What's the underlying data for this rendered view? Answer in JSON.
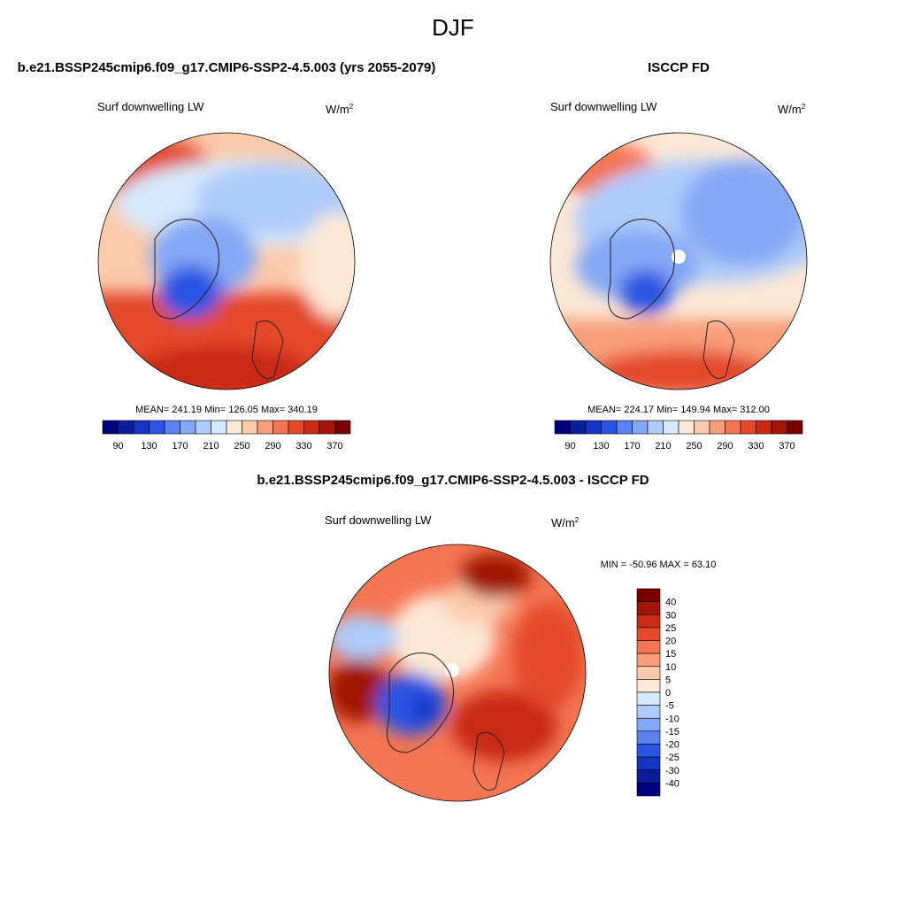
{
  "title": "DJF",
  "panels": [
    {
      "title": "b.e21.BSSP245cmip6.f09_g17.CMIP6-SSP2-4.5.003 (yrs 2055-2079)",
      "variable": "Surf downwelling LW",
      "units": "W/m",
      "units_exponent": "2",
      "stats": "MEAN= 241.19  Min= 126.05  Max= 340.19",
      "colorbar": {
        "labels": [
          "90",
          "130",
          "170",
          "210",
          "250",
          "290",
          "330",
          "370"
        ],
        "colors": [
          "#00007f",
          "#0a1e9c",
          "#1434c4",
          "#2a55e4",
          "#5a82f0",
          "#84a7f5",
          "#aecbfa",
          "#d6e8fb",
          "#fce8d6",
          "#fbcaaa",
          "#f89e7a",
          "#f47552",
          "#e4492a",
          "#c92b14",
          "#a11406",
          "#7a0000"
        ]
      }
    },
    {
      "title": "ISCCP FD",
      "variable": "Surf downwelling LW",
      "units": "W/m",
      "units_exponent": "2",
      "stats": "MEAN= 224.17  Min= 149.94  Max= 312.00",
      "colorbar": {
        "labels": [
          "90",
          "130",
          "170",
          "210",
          "250",
          "290",
          "330",
          "370"
        ],
        "colors": [
          "#00007f",
          "#0a1e9c",
          "#1434c4",
          "#2a55e4",
          "#5a82f0",
          "#84a7f5",
          "#aecbfa",
          "#d6e8fb",
          "#fce8d6",
          "#fbcaaa",
          "#f89e7a",
          "#f47552",
          "#e4492a",
          "#c92b14",
          "#a11406",
          "#7a0000"
        ]
      }
    }
  ],
  "difference": {
    "title": "b.e21.BSSP245cmip6.f09_g17.CMIP6-SSP2-4.5.003 - ISCCP FD",
    "variable": "Surf downwelling LW",
    "units": "W/m",
    "units_exponent": "2",
    "stats": "MIN = -50.96 MAX =  63.10",
    "colorbar": {
      "labels": [
        "40",
        "30",
        "25",
        "20",
        "15",
        "10",
        "5",
        "0",
        "-5",
        "-10",
        "-15",
        "-20",
        "-25",
        "-30",
        "-40"
      ],
      "colors": [
        "#7a0000",
        "#a11406",
        "#c92b14",
        "#e4492a",
        "#f47552",
        "#f89e7a",
        "#fbcaaa",
        "#fce8d6",
        "#d6e8fb",
        "#aecbfa",
        "#84a7f5",
        "#5a82f0",
        "#2a55e4",
        "#1434c4",
        "#0a1e9c",
        "#00007f"
      ]
    }
  }
}
